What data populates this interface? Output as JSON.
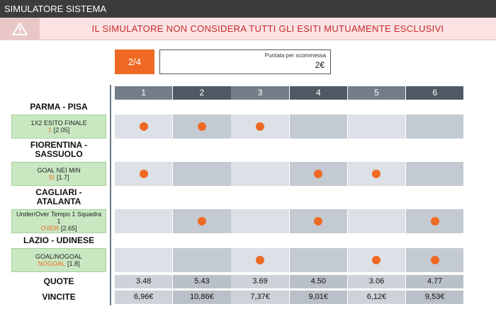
{
  "header": {
    "title": "SIMULATORE SISTEMA"
  },
  "warning": {
    "message": "IL SIMULATORE NON CONSIDERA TUTTI GLI ESITI MUTUAMENTE ESCLUSIVI"
  },
  "system": {
    "label": "2/4"
  },
  "stake": {
    "label": "Puntata per scommessa",
    "value": "2€"
  },
  "columns": [
    "1",
    "2",
    "3",
    "4",
    "5",
    "6"
  ],
  "events": [
    {
      "match": "PARMA - PISA",
      "market": "1X2 ESITO FINALE",
      "outcome": "1",
      "odds": "[2.05]",
      "selected": [
        true,
        true,
        true,
        false,
        false,
        false
      ]
    },
    {
      "match": "FIORENTINA - SASSUOLO",
      "market": "GOAL NEI MIN",
      "outcome": "SI",
      "odds": "[1.7]",
      "selected": [
        true,
        false,
        false,
        true,
        true,
        false
      ]
    },
    {
      "match": "CAGLIARI - ATALANTA",
      "market": "Under/Over Tempo 1 Squadra 1",
      "outcome": "OVER",
      "odds": "[2.65]",
      "selected": [
        false,
        true,
        false,
        true,
        false,
        true
      ]
    },
    {
      "match": "LAZIO - UDINESE",
      "market": "GOAL/NOGOAL",
      "outcome": "NOGOAL",
      "odds": "[1.8]",
      "selected": [
        false,
        false,
        true,
        false,
        true,
        true
      ]
    }
  ],
  "totals": [
    {
      "label": "QUOTE",
      "values": [
        "3.48",
        "5.43",
        "3.69",
        "4.50",
        "3.06",
        "4.77"
      ]
    },
    {
      "label": "VINCITE",
      "values": [
        "6,96€",
        "10,86€",
        "7,37€",
        "9,01€",
        "6,12€",
        "9,53€"
      ]
    }
  ]
}
